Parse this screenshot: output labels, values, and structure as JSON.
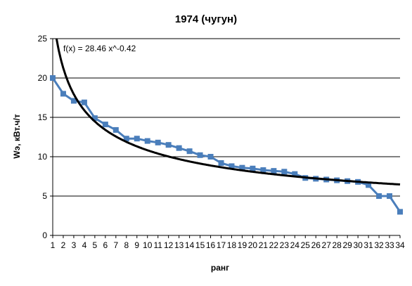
{
  "chart_data": {
    "type": "line",
    "title": "1974 (чугун)",
    "xlabel": "ранг",
    "ylabel": "Wэ, кВт.ч/т",
    "ylim": [
      0,
      25
    ],
    "y_ticks": [
      0,
      5,
      10,
      15,
      20,
      25
    ],
    "x_categories": [
      "1",
      "2",
      "3",
      "4",
      "5",
      "6",
      "7",
      "8",
      "9",
      "10",
      "11",
      "12",
      "13",
      "14",
      "15",
      "16",
      "17",
      "18",
      "19",
      "20",
      "21",
      "22",
      "23",
      "24",
      "25",
      "26",
      "27",
      "28",
      "29",
      "30",
      "31",
      "32",
      "33",
      "34"
    ],
    "grid": true,
    "series": [
      {
        "values": [
          20.0,
          18.0,
          17.1,
          16.9,
          14.9,
          14.1,
          13.4,
          12.3,
          12.3,
          12.0,
          11.8,
          11.5,
          11.1,
          10.7,
          10.2,
          10.0,
          9.2,
          8.8,
          8.6,
          8.5,
          8.3,
          8.2,
          8.1,
          7.8,
          7.3,
          7.2,
          7.1,
          7.0,
          6.9,
          6.8,
          6.4,
          5.0,
          5.0,
          3.0
        ],
        "color": "#4a7ebb",
        "marker": "square"
      }
    ],
    "trendline": {
      "equation": "f(x) = 28.46 x^-0.42",
      "coefficient": 28.46,
      "exponent": -0.42,
      "color": "#000000"
    }
  }
}
